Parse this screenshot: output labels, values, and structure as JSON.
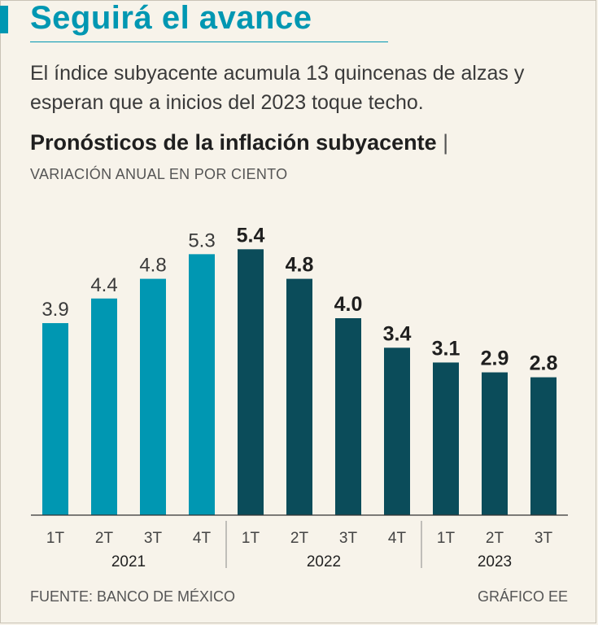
{
  "header": {
    "title": "Seguirá el avance",
    "subtitle": "El índice subyacente acumula 13 quincenas de alzas y esperan que a inicios del 2023 toque techo."
  },
  "chart_header": {
    "title": "Pronósticos de la inflación subyacente",
    "pipe": "|",
    "units": "VARIACIÓN ANUAL EN POR CIENTO"
  },
  "footer": {
    "source": "FUENTE: BANCO DE MÉXICO",
    "credit": "GRÁFICO EE"
  },
  "colors": {
    "historical": "#0097b2",
    "forecast": "#0b4c5a",
    "background": "#f7f3ea"
  },
  "chart_data": {
    "type": "bar",
    "title": "Pronósticos de la inflación subyacente",
    "ylabel": "Variación anual en por ciento",
    "ylim": [
      0,
      5.4
    ],
    "categories": [
      "1T",
      "2T",
      "3T",
      "4T",
      "1T",
      "2T",
      "3T",
      "4T",
      "1T",
      "2T",
      "3T"
    ],
    "years": [
      {
        "label": "2021",
        "count": 4
      },
      {
        "label": "2022",
        "count": 4
      },
      {
        "label": "2023",
        "count": 3
      }
    ],
    "values": [
      3.9,
      4.4,
      4.8,
      5.3,
      5.4,
      4.8,
      4.0,
      3.4,
      3.1,
      2.9,
      2.8
    ],
    "labels": [
      "3.9",
      "4.4",
      "4.8",
      "5.3",
      "5.4",
      "4.8",
      "4.0",
      "3.4",
      "3.1",
      "2.9",
      "2.8"
    ],
    "series_type": [
      "historical",
      "historical",
      "historical",
      "historical",
      "forecast",
      "forecast",
      "forecast",
      "forecast",
      "forecast",
      "forecast",
      "forecast"
    ]
  }
}
